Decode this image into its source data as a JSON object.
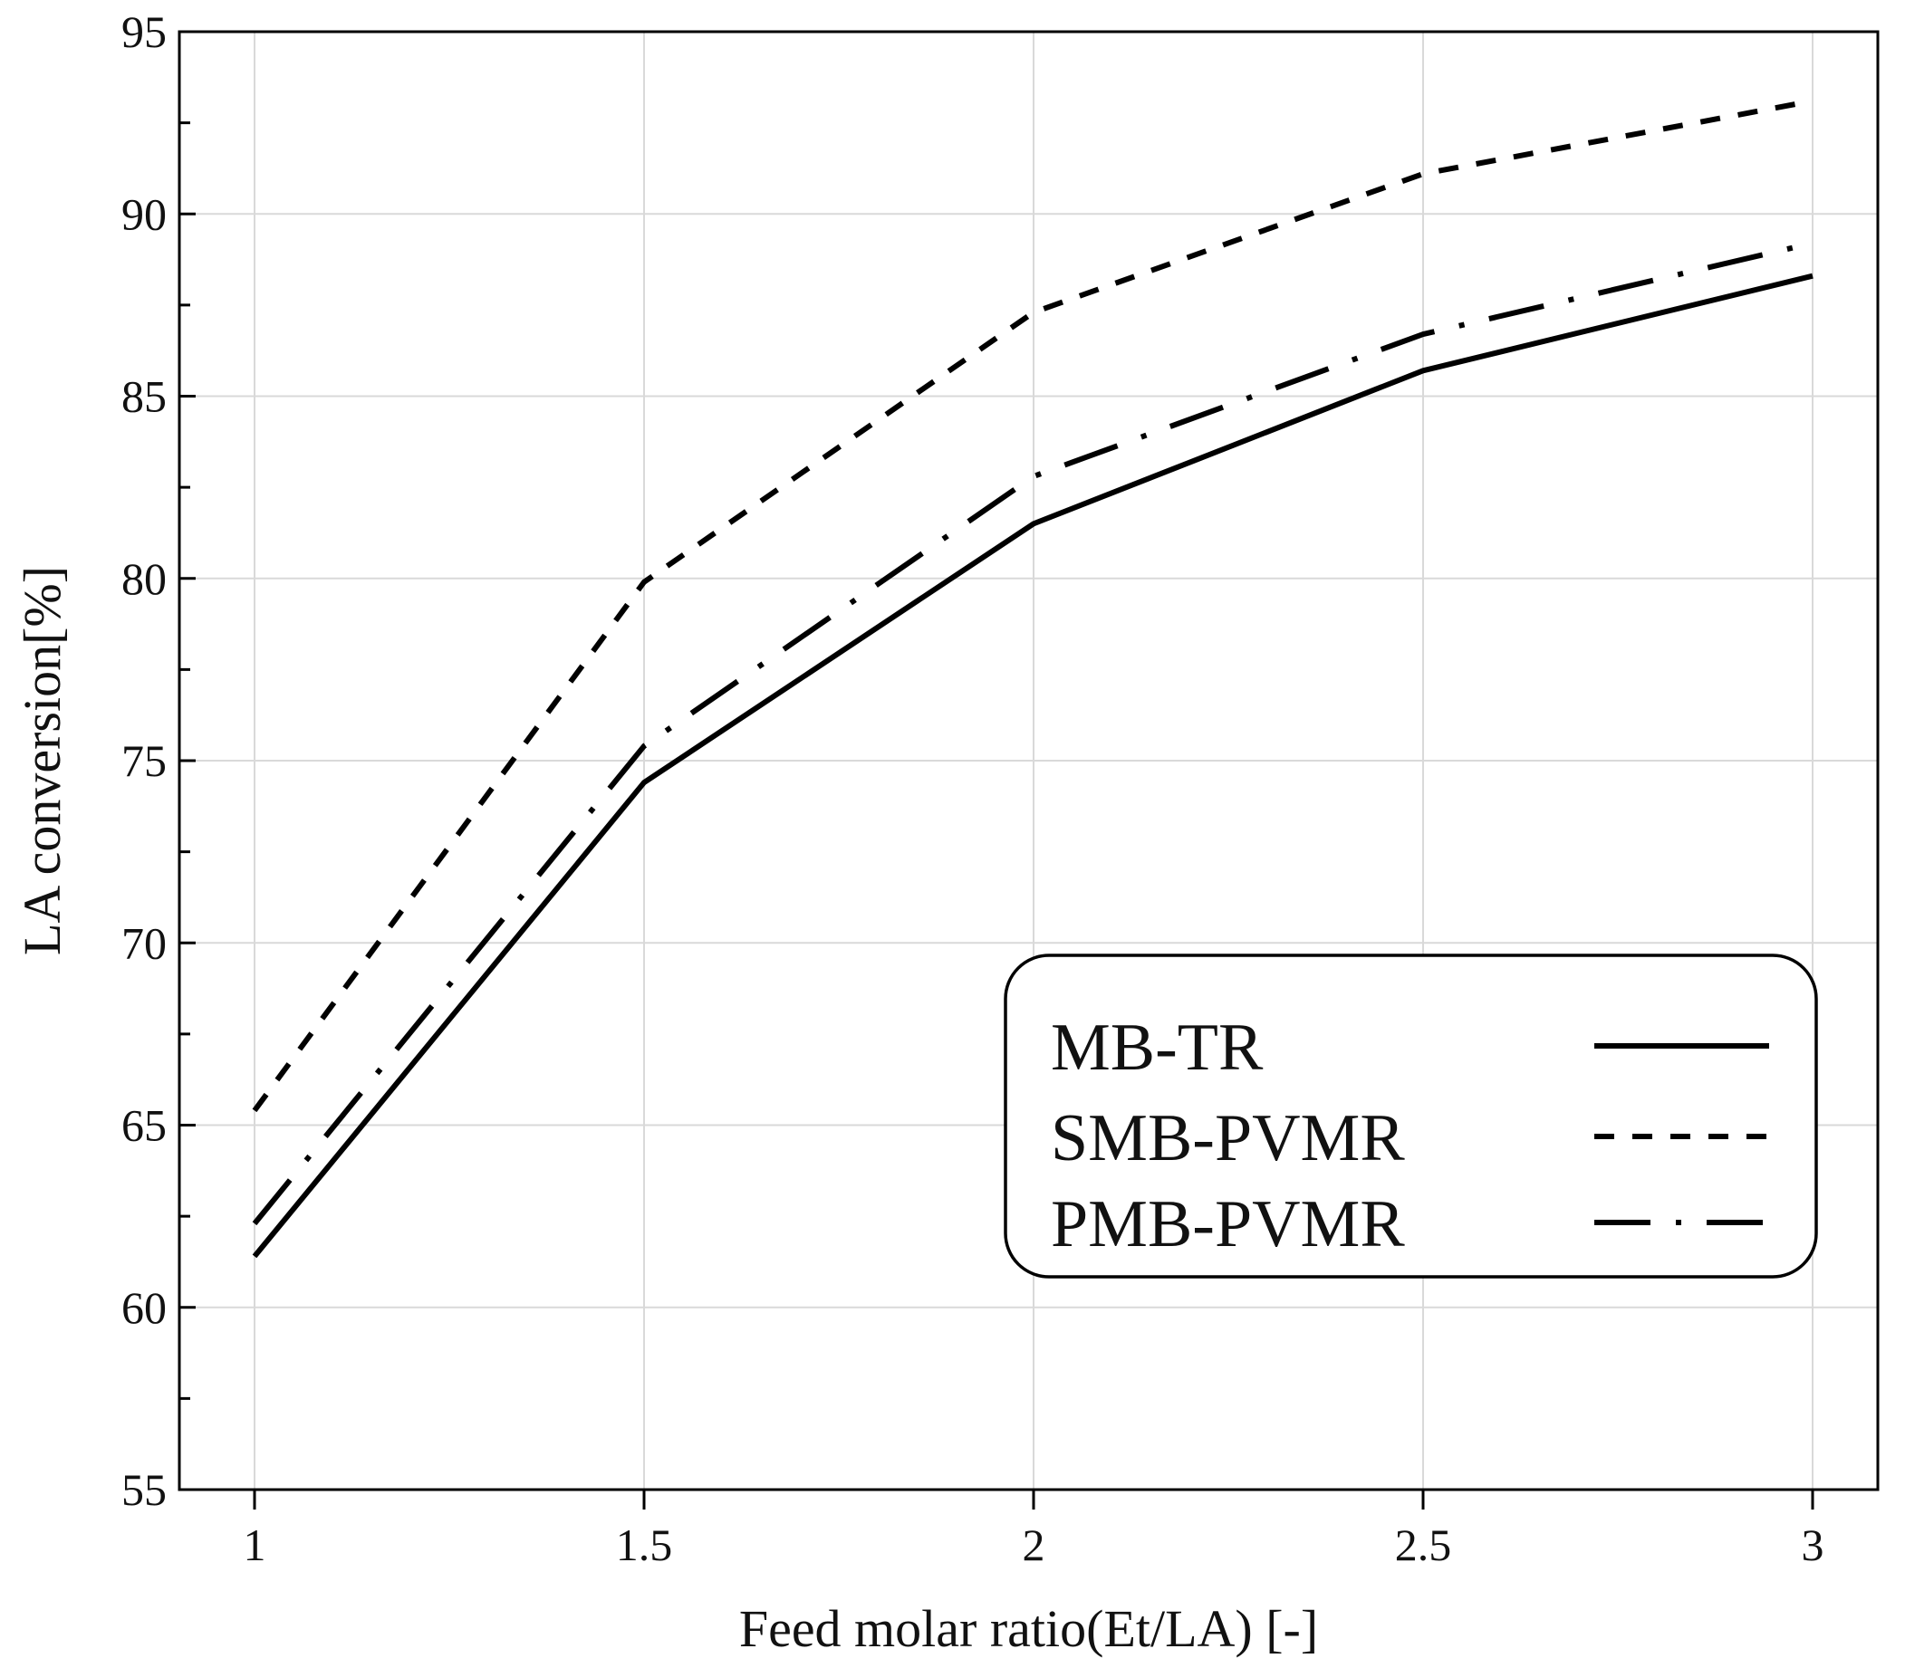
{
  "chart_data": {
    "type": "line",
    "xlabel": "Feed molar ratio(Et/LA) [-]",
    "ylabel": "LA conversion[%]",
    "xlim": [
      0.9,
      3.1
    ],
    "ylim": [
      55,
      95
    ],
    "x_ticks": [
      1,
      1.5,
      2,
      2.5,
      3
    ],
    "x_tick_labels": [
      "1",
      "1.5",
      "2",
      "2.5",
      "3"
    ],
    "y_ticks": [
      55,
      60,
      65,
      70,
      75,
      80,
      85,
      90,
      95
    ],
    "y_tick_labels": [
      "55",
      "60",
      "65",
      "70",
      "75",
      "80",
      "85",
      "90",
      "95"
    ],
    "grid": true,
    "legend_position": "lower-right",
    "series": [
      {
        "name": "MB-TR",
        "dash": "solid",
        "x": [
          1,
          1.5,
          2,
          2.5,
          3
        ],
        "y": [
          61.4,
          74.4,
          81.5,
          85.7,
          88.3
        ]
      },
      {
        "name": "SMB-PVMR",
        "dash": "dashed",
        "x": [
          1,
          1.5,
          2,
          2.5,
          3
        ],
        "y": [
          65.4,
          79.9,
          87.3,
          91.1,
          93.1
        ]
      },
      {
        "name": "PMB-PVMR",
        "dash": "dash-dot",
        "x": [
          1,
          1.5,
          2,
          2.5,
          3
        ],
        "y": [
          62.3,
          75.4,
          82.8,
          86.7,
          89.2
        ]
      }
    ]
  }
}
